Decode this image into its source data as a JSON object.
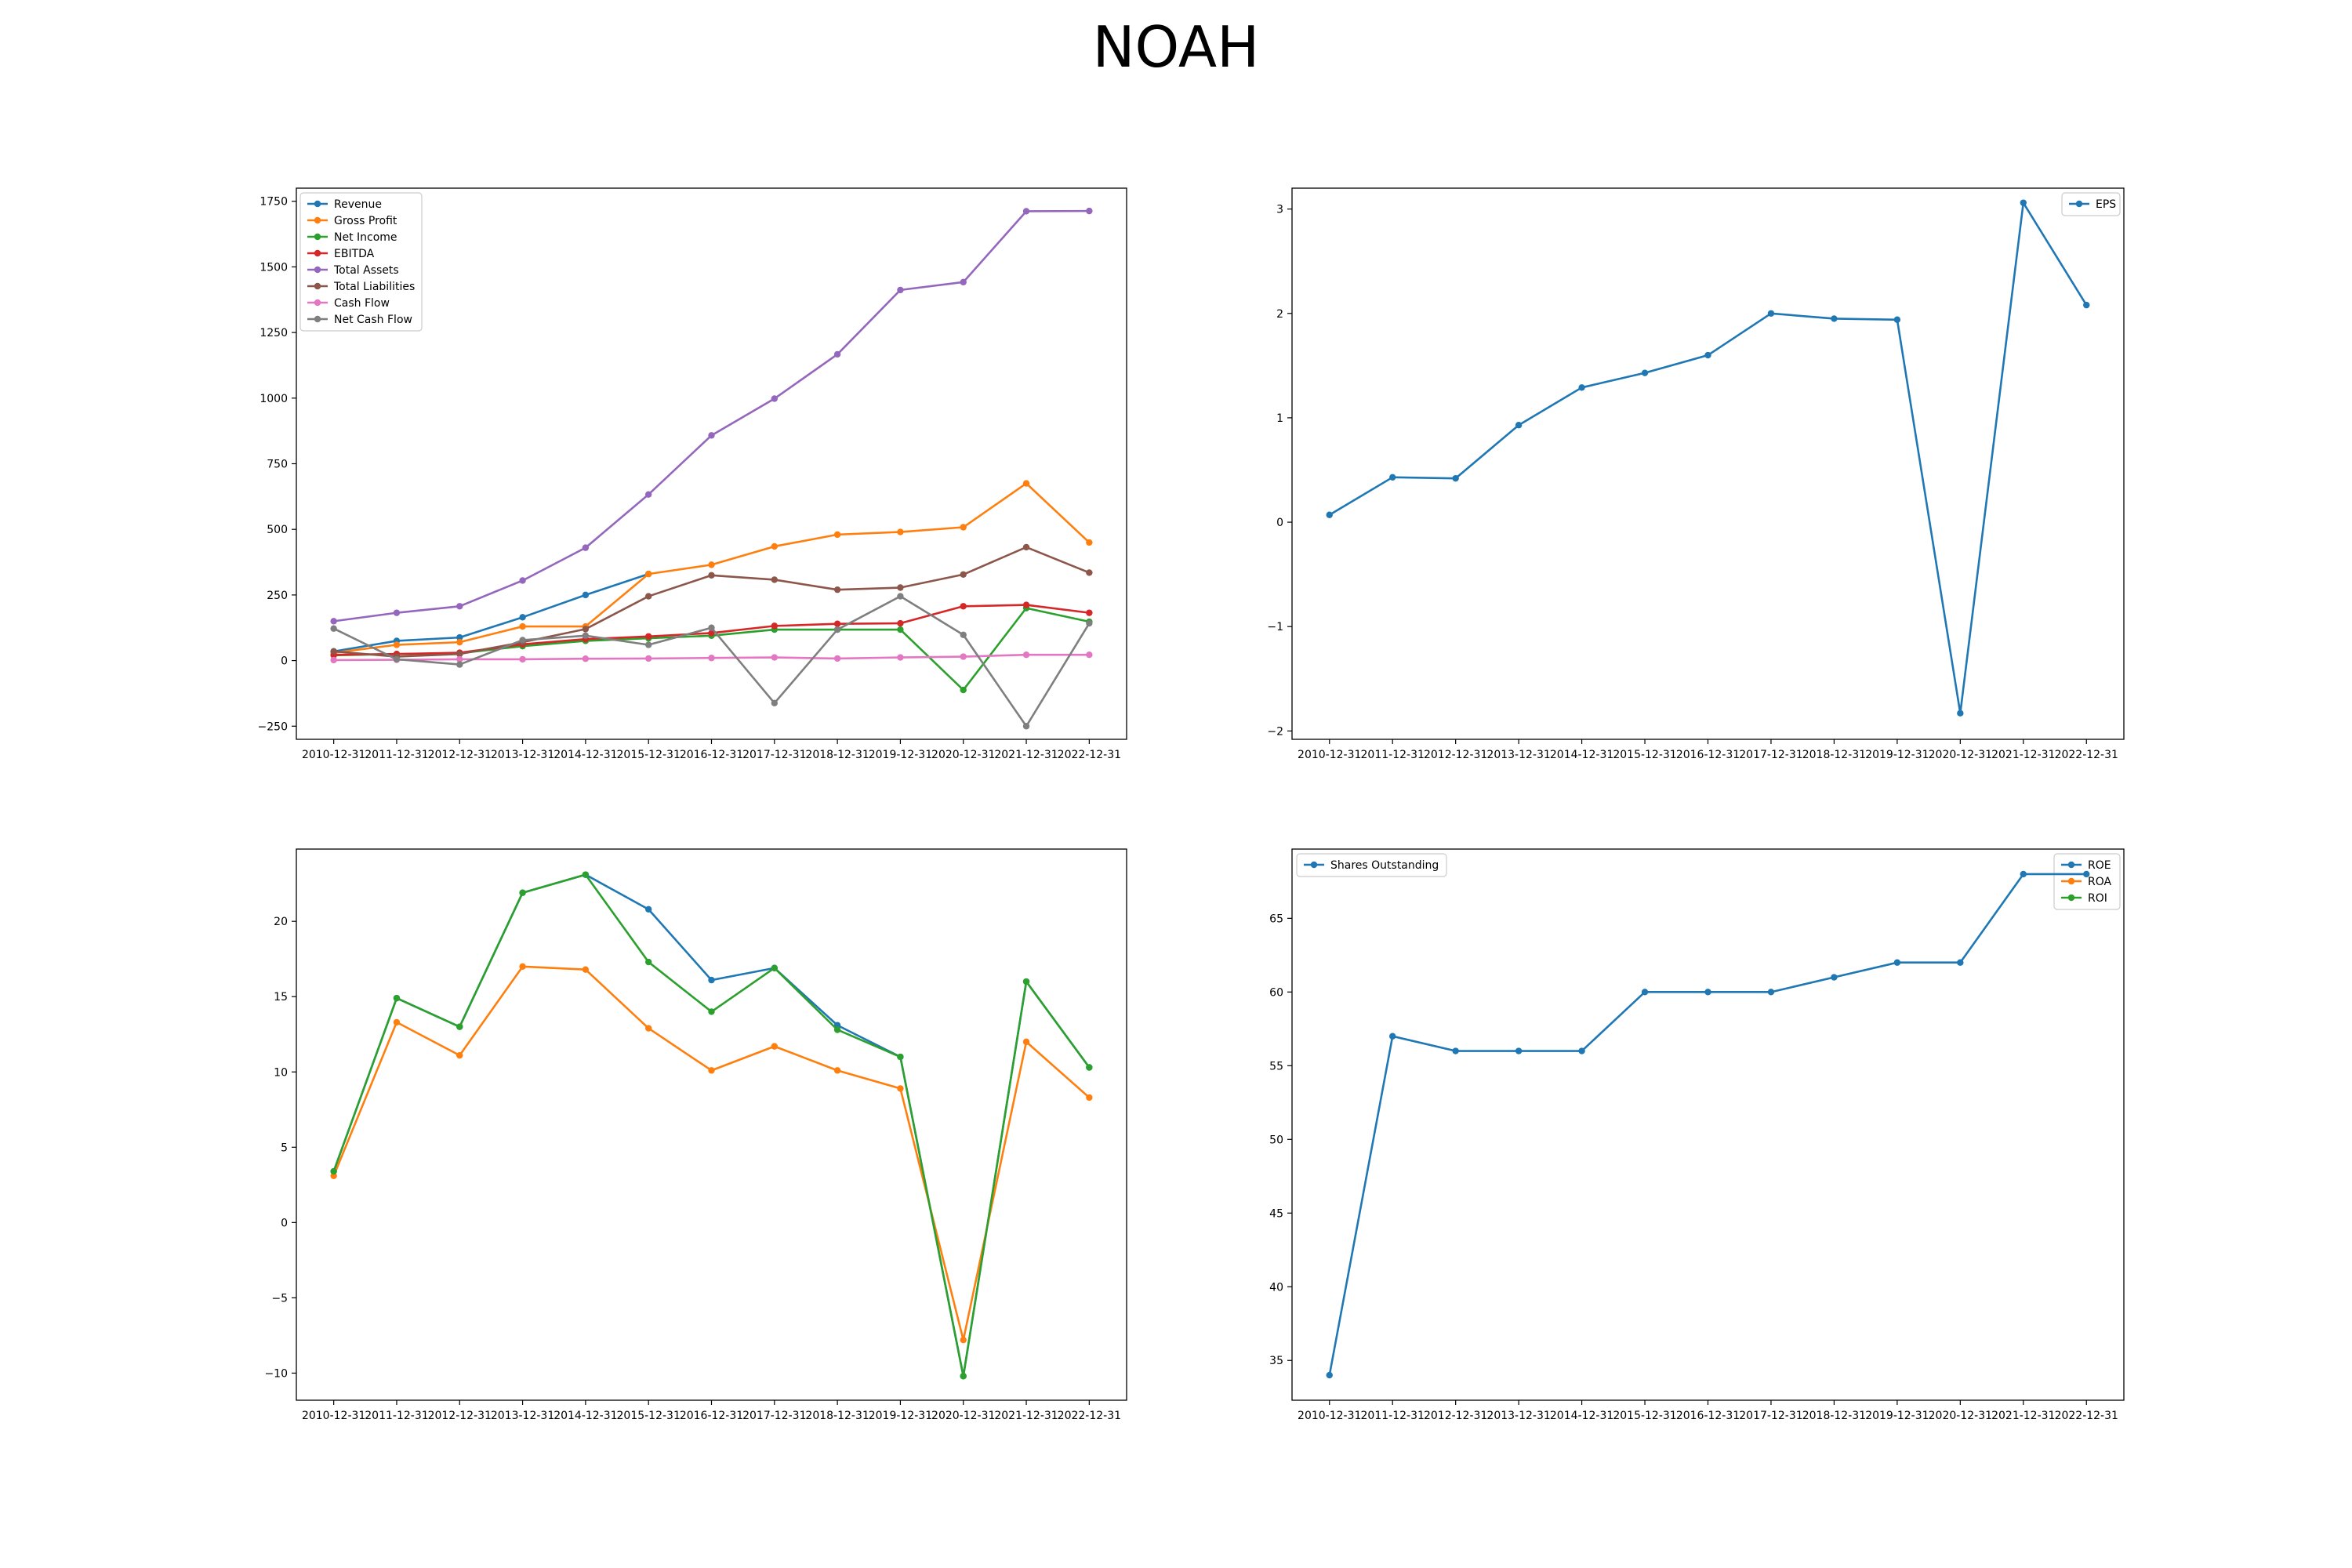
{
  "title": "NOAH",
  "dates": [
    "2010-12-31",
    "2011-12-31",
    "2012-12-31",
    "2013-12-31",
    "2014-12-31",
    "2015-12-31",
    "2016-12-31",
    "2017-12-31",
    "2018-12-31",
    "2019-12-31",
    "2020-12-31",
    "2021-12-31",
    "2022-12-31"
  ],
  "chart_data": [
    {
      "type": "line",
      "x": [
        "2010-12-31",
        "2011-12-31",
        "2012-12-31",
        "2013-12-31",
        "2014-12-31",
        "2015-12-31",
        "2016-12-31",
        "2017-12-31",
        "2018-12-31",
        "2019-12-31",
        "2020-12-31",
        "2021-12-31",
        "2022-12-31"
      ],
      "ylim": [
        -300,
        1800
      ],
      "yticks": [
        -250,
        0,
        250,
        500,
        750,
        1000,
        1250,
        1500,
        1750
      ],
      "legend_position": "upper left",
      "series": [
        {
          "name": "Revenue",
          "color": "#1f77b4",
          "values": [
            35,
            75,
            88,
            165,
            250,
            330,
            null,
            null,
            null,
            null,
            null,
            null,
            null
          ]
        },
        {
          "name": "Gross Profit",
          "color": "#ff7f0e",
          "values": [
            30,
            60,
            70,
            130,
            130,
            330,
            365,
            435,
            480,
            490,
            508,
            675,
            450
          ]
        },
        {
          "name": "Net Income",
          "color": "#2ca02c",
          "values": [
            20,
            25,
            28,
            55,
            75,
            85,
            95,
            118,
            118,
            118,
            -112,
            200,
            148
          ]
        },
        {
          "name": "EBITDA",
          "color": "#d62728",
          "values": [
            22,
            25,
            30,
            62,
            82,
            92,
            105,
            132,
            140,
            142,
            207,
            212,
            182
          ]
        },
        {
          "name": "Total Assets",
          "color": "#9467bd",
          "values": [
            150,
            182,
            207,
            305,
            430,
            633,
            858,
            998,
            1167,
            1412,
            1442,
            1712,
            1713
          ]
        },
        {
          "name": "Total Liabilities",
          "color": "#8c564b",
          "values": [
            35,
            15,
            25,
            70,
            120,
            245,
            325,
            308,
            270,
            278,
            328,
            432,
            335
          ]
        },
        {
          "name": "Cash Flow",
          "color": "#e377c2",
          "values": [
            2,
            3,
            5,
            5,
            7,
            8,
            10,
            12,
            8,
            12,
            15,
            22,
            22
          ]
        },
        {
          "name": "Net Cash Flow",
          "color": "#7f7f7f",
          "values": [
            122,
            5,
            -15,
            78,
            95,
            60,
            125,
            -162,
            118,
            245,
            98,
            -250,
            142
          ]
        }
      ]
    },
    {
      "type": "line",
      "x": [
        "2010-12-31",
        "2011-12-31",
        "2012-12-31",
        "2013-12-31",
        "2014-12-31",
        "2015-12-31",
        "2016-12-31",
        "2017-12-31",
        "2018-12-31",
        "2019-12-31",
        "2020-12-31",
        "2021-12-31",
        "2022-12-31"
      ],
      "ylim": [
        -2.08,
        3.2
      ],
      "yticks": [
        -2,
        -1,
        0,
        1,
        2,
        3
      ],
      "legend_position": "upper right",
      "series": [
        {
          "name": "EPS",
          "color": "#1f77b4",
          "values": [
            0.07,
            0.43,
            0.42,
            0.93,
            1.29,
            1.43,
            1.6,
            2.0,
            1.95,
            1.94,
            -1.83,
            3.06,
            2.08
          ]
        }
      ]
    },
    {
      "type": "line",
      "x": [
        "2010-12-31",
        "2011-12-31",
        "2012-12-31",
        "2013-12-31",
        "2014-12-31",
        "2015-12-31",
        "2016-12-31",
        "2017-12-31",
        "2018-12-31",
        "2019-12-31",
        "2020-12-31",
        "2021-12-31",
        "2022-12-31"
      ],
      "ylim": [
        -11.8,
        24.8
      ],
      "yticks": [
        -10,
        -5,
        0,
        5,
        10,
        15,
        20
      ],
      "legend_position": "upper right",
      "series": [
        {
          "name": "ROE",
          "color": "#1f77b4",
          "values": [
            3.4,
            14.9,
            13.0,
            21.9,
            23.1,
            20.8,
            16.1,
            16.9,
            13.1,
            11.0,
            -10.2,
            16.0,
            10.3
          ]
        },
        {
          "name": "ROA",
          "color": "#ff7f0e",
          "values": [
            3.1,
            13.3,
            11.1,
            17.0,
            16.8,
            12.9,
            10.1,
            11.7,
            10.1,
            8.9,
            -7.8,
            12.0,
            8.3
          ]
        },
        {
          "name": "ROI",
          "color": "#2ca02c",
          "values": [
            3.4,
            14.9,
            13.0,
            21.9,
            23.1,
            17.3,
            14.0,
            16.9,
            12.8,
            11.0,
            -10.2,
            16.0,
            10.3
          ]
        }
      ]
    },
    {
      "type": "line",
      "x": [
        "2010-12-31",
        "2011-12-31",
        "2012-12-31",
        "2013-12-31",
        "2014-12-31",
        "2015-12-31",
        "2016-12-31",
        "2017-12-31",
        "2018-12-31",
        "2019-12-31",
        "2020-12-31",
        "2021-12-31",
        "2022-12-31"
      ],
      "ylim": [
        32.3,
        69.7
      ],
      "yticks": [
        35,
        40,
        45,
        50,
        55,
        60,
        65
      ],
      "legend_position": "upper left",
      "series": [
        {
          "name": "Shares Outstanding",
          "color": "#1f77b4",
          "values": [
            34,
            57,
            56,
            56,
            56,
            60,
            60,
            60,
            61,
            62,
            62,
            68,
            68
          ]
        }
      ]
    }
  ]
}
